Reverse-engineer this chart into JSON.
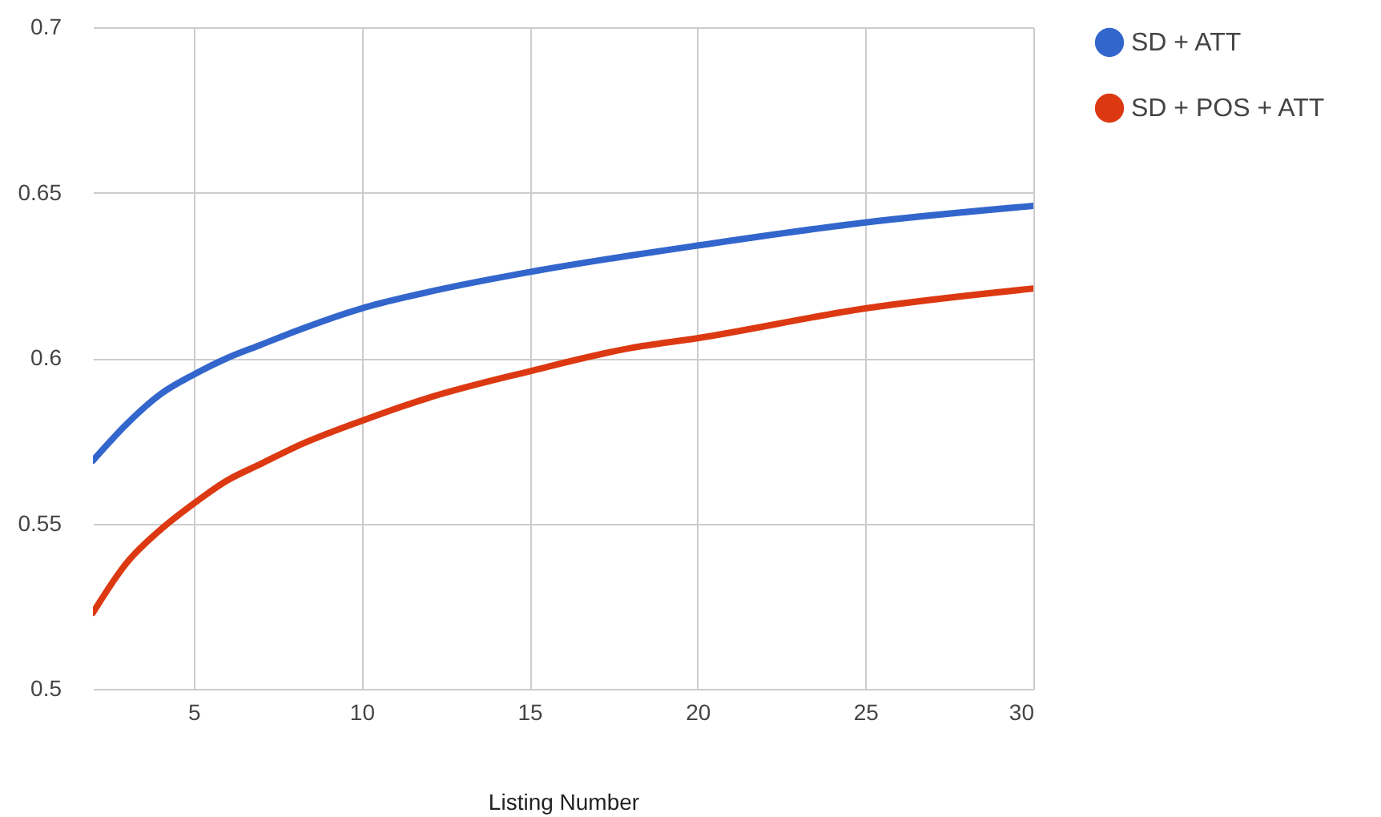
{
  "chart_data": {
    "type": "line",
    "xlabel": "Listing Number",
    "x": [
      2,
      3,
      4,
      5,
      6,
      7,
      8,
      10,
      12,
      15,
      18,
      20,
      25,
      30
    ],
    "series": [
      {
        "name": "SD + ATT",
        "color": "#3366cc",
        "values": [
          0.569,
          0.58,
          0.589,
          0.595,
          0.6,
          0.604,
          0.608,
          0.615,
          0.62,
          0.626,
          0.631,
          0.634,
          0.641,
          0.646
        ]
      },
      {
        "name": "SD + POS + ATT",
        "color": "#dc3912",
        "values": [
          0.523,
          0.538,
          0.548,
          0.556,
          0.563,
          0.568,
          0.573,
          0.581,
          0.588,
          0.596,
          0.603,
          0.606,
          0.615,
          0.621
        ]
      }
    ],
    "xlim": [
      2,
      30
    ],
    "xticks": [
      5,
      10,
      15,
      20,
      25,
      30
    ],
    "ylim": [
      0.5,
      0.7
    ],
    "yticks": [
      0.5,
      0.55,
      0.6,
      0.65,
      0.7
    ],
    "grid": true,
    "legend": "top right",
    "marker": "none",
    "line_style": "solid"
  }
}
